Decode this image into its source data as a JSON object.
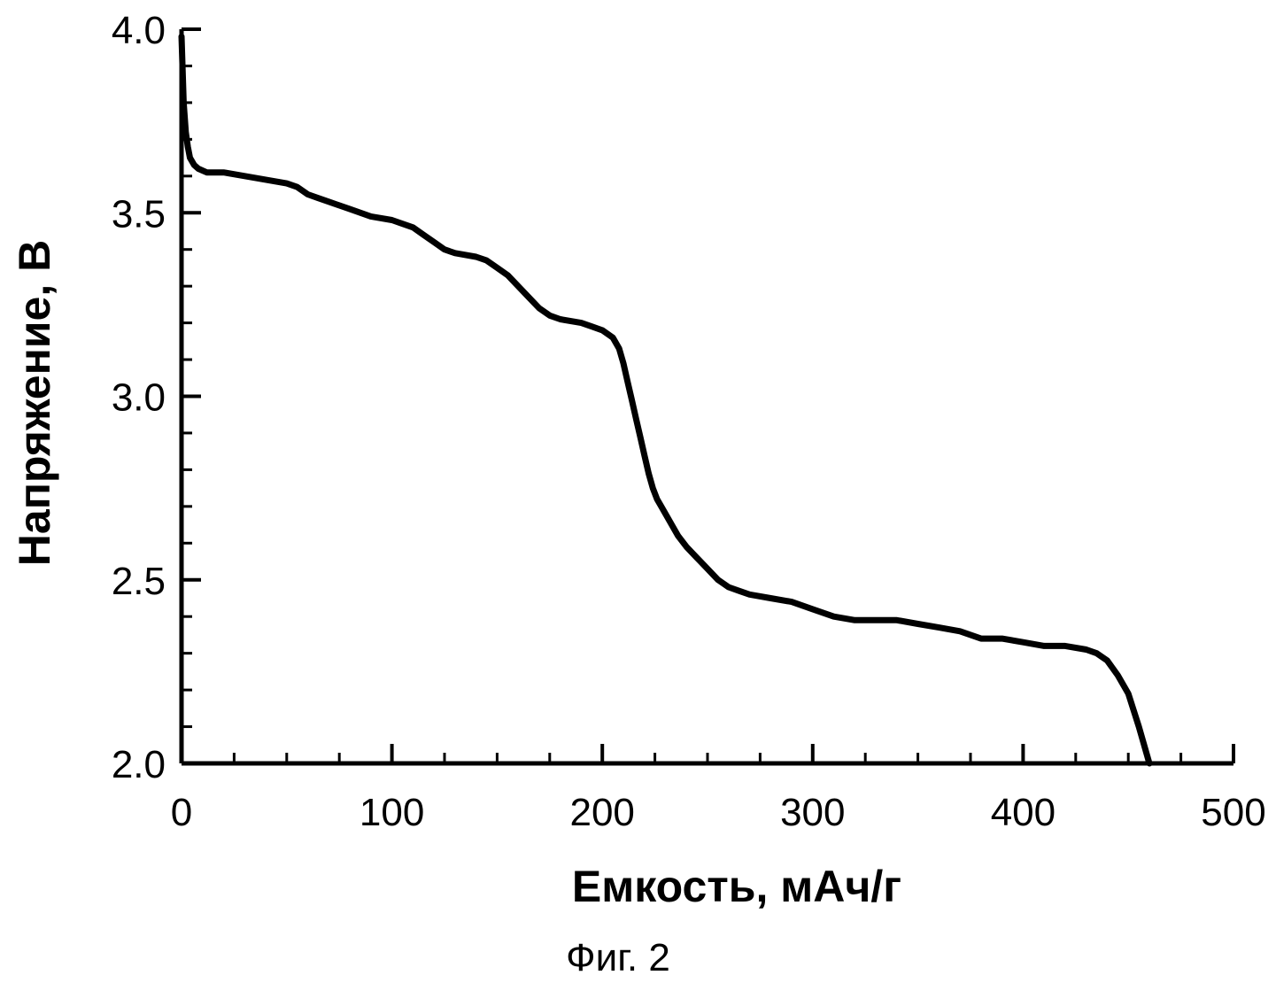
{
  "chart_data": {
    "type": "line",
    "title": "",
    "xlabel": "Емкость, мАч/г",
    "ylabel": "Напряжение, В",
    "caption": "Фиг. 2",
    "xlim": [
      0,
      500
    ],
    "ylim": [
      2.0,
      4.0
    ],
    "x_ticks": [
      0,
      100,
      200,
      300,
      400,
      500
    ],
    "x_tick_labels": [
      "0",
      "100",
      "200",
      "300",
      "400",
      "500"
    ],
    "y_ticks": [
      2.0,
      2.5,
      3.0,
      3.5,
      4.0
    ],
    "y_tick_labels": [
      "2.0",
      "2.5",
      "3.0",
      "3.5",
      "4.0"
    ],
    "x_minor_step": 25,
    "y_minor_step": 0.1,
    "grid": false,
    "line_color": "#000000",
    "series": [
      {
        "x": [
          0,
          1,
          2,
          3,
          4,
          6,
          8,
          12,
          20,
          30,
          40,
          50,
          55,
          60,
          65,
          70,
          80,
          90,
          100,
          110,
          115,
          120,
          125,
          130,
          140,
          145,
          150,
          155,
          160,
          165,
          170,
          175,
          180,
          190,
          195,
          200,
          205,
          208,
          210,
          212,
          214,
          216,
          218,
          220,
          222,
          224,
          226,
          228,
          232,
          236,
          240,
          245,
          250,
          255,
          260,
          265,
          270,
          280,
          290,
          300,
          310,
          320,
          330,
          340,
          350,
          360,
          370,
          380,
          390,
          400,
          410,
          420,
          430,
          435,
          440,
          445,
          450,
          455,
          460
        ],
        "y": [
          3.98,
          3.8,
          3.72,
          3.68,
          3.65,
          3.63,
          3.62,
          3.61,
          3.61,
          3.6,
          3.59,
          3.58,
          3.57,
          3.55,
          3.54,
          3.53,
          3.51,
          3.49,
          3.48,
          3.46,
          3.44,
          3.42,
          3.4,
          3.39,
          3.38,
          3.37,
          3.35,
          3.33,
          3.3,
          3.27,
          3.24,
          3.22,
          3.21,
          3.2,
          3.19,
          3.18,
          3.16,
          3.13,
          3.09,
          3.04,
          2.99,
          2.94,
          2.89,
          2.84,
          2.79,
          2.75,
          2.72,
          2.7,
          2.66,
          2.62,
          2.59,
          2.56,
          2.53,
          2.5,
          2.48,
          2.47,
          2.46,
          2.45,
          2.44,
          2.42,
          2.4,
          2.39,
          2.39,
          2.39,
          2.38,
          2.37,
          2.36,
          2.34,
          2.34,
          2.33,
          2.32,
          2.32,
          2.31,
          2.3,
          2.28,
          2.24,
          2.19,
          2.1,
          2.0
        ]
      }
    ]
  }
}
